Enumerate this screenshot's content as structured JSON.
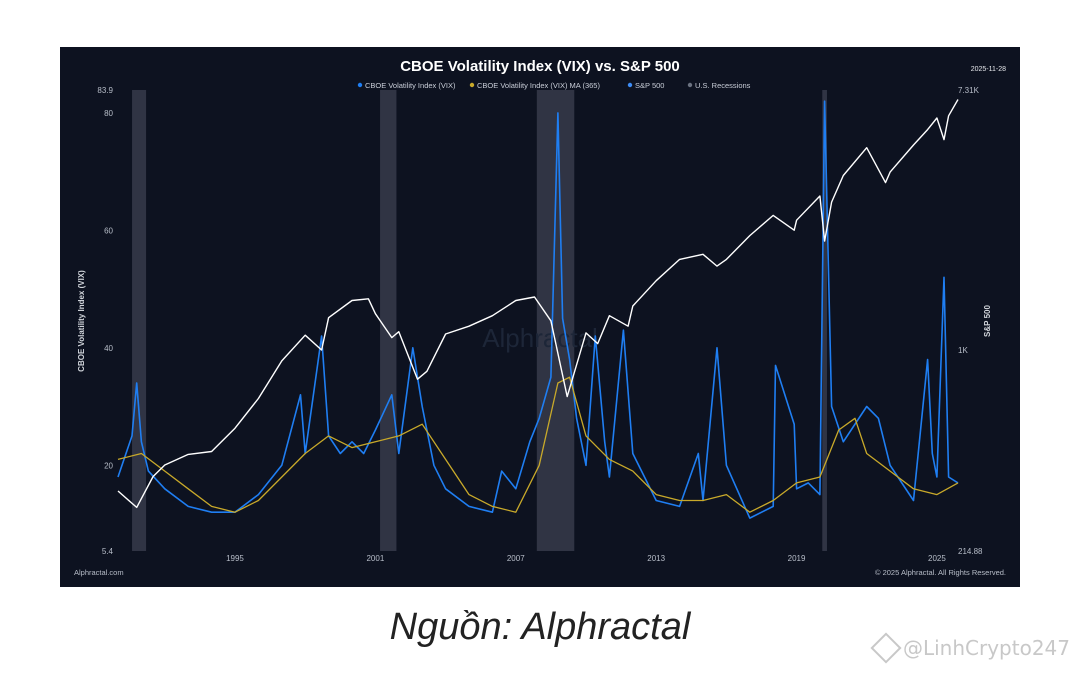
{
  "chart_data": {
    "type": "line",
    "title": "CBOE Volatility Index (VIX) vs. S&P 500",
    "date": "2025-11-28",
    "legend": [
      {
        "label": "CBOE Volatility Index (VIX)",
        "color": "#1f7ef2"
      },
      {
        "label": "CBOE Volatility Index (VIX) MA (365)",
        "color": "#c8a92a"
      },
      {
        "label": "S&P 500",
        "color": "#3d8cf5"
      },
      {
        "label": "U.S. Recessions",
        "color": "#6b7280"
      }
    ],
    "ylabel_left": "CBOE Volatility Index (VIX)",
    "ylabel_right": "S&P 500",
    "y_left_ticks": [
      "83.9",
      "80",
      "60",
      "40",
      "20",
      "5.4"
    ],
    "y_left_range": [
      5.4,
      83.9
    ],
    "y_right_ticks": [
      "7.31K",
      "1K",
      "214.88"
    ],
    "y_right_range": [
      214.88,
      7310
    ],
    "y_right_scale": "log",
    "x_ticks": [
      "1995",
      "2001",
      "2007",
      "2013",
      "2019",
      "2025"
    ],
    "x_range": [
      1990,
      2025.9
    ],
    "recessions": [
      [
        1990.6,
        1991.2
      ],
      [
        2001.2,
        2001.9
      ],
      [
        2007.9,
        2009.5
      ],
      [
        2020.1,
        2020.3
      ]
    ],
    "series": [
      {
        "name": "CBOE Volatility Index (VIX)",
        "x": [
          1990.0,
          1990.6,
          1990.8,
          1991.0,
          1991.3,
          1992.0,
          1993.0,
          1994.0,
          1995.0,
          1996.0,
          1997.0,
          1997.8,
          1998.0,
          1998.7,
          1999.0,
          1999.5,
          2000.0,
          2000.5,
          2001.0,
          2001.7,
          2002.0,
          2002.6,
          2003.0,
          2003.5,
          2004.0,
          2005.0,
          2006.0,
          2006.4,
          2007.0,
          2007.6,
          2008.0,
          2008.5,
          2008.8,
          2009.0,
          2009.3,
          2009.6,
          2010.0,
          2010.4,
          2010.8,
          2011.0,
          2011.6,
          2012.0,
          2013.0,
          2014.0,
          2014.8,
          2015.0,
          2015.6,
          2016.0,
          2017.0,
          2018.0,
          2018.1,
          2018.9,
          2019.0,
          2019.5,
          2020.0,
          2020.2,
          2020.5,
          2021.0,
          2022.0,
          2022.5,
          2023.0,
          2024.0,
          2024.6,
          2024.8,
          2025.0,
          2025.3,
          2025.5,
          2025.9
        ],
        "values": [
          18,
          25,
          34,
          24,
          19,
          16,
          13,
          12,
          12,
          15,
          20,
          32,
          22,
          42,
          25,
          22,
          24,
          22,
          26,
          32,
          22,
          40,
          30,
          20,
          16,
          13,
          12,
          19,
          16,
          24,
          28,
          35,
          80,
          45,
          38,
          28,
          20,
          42,
          24,
          18,
          43,
          22,
          14,
          13,
          22,
          14,
          40,
          20,
          11,
          13,
          37,
          27,
          16,
          17,
          15,
          82,
          30,
          24,
          30,
          28,
          20,
          14,
          38,
          22,
          18,
          52,
          18,
          17
        ]
      },
      {
        "name": "CBOE Volatility Index (VIX) MA (365)",
        "x": [
          1990.0,
          1991.0,
          1992.0,
          1993.0,
          1994.0,
          1995.0,
          1996.0,
          1997.0,
          1998.0,
          1999.0,
          2000.0,
          2001.0,
          2002.0,
          2003.0,
          2004.0,
          2005.0,
          2006.0,
          2007.0,
          2008.0,
          2008.8,
          2009.3,
          2010.0,
          2011.0,
          2012.0,
          2013.0,
          2014.0,
          2015.0,
          2016.0,
          2017.0,
          2018.0,
          2019.0,
          2020.0,
          2020.8,
          2021.5,
          2022.0,
          2023.0,
          2024.0,
          2025.0,
          2025.9
        ],
        "values": [
          21,
          22,
          19,
          16,
          13,
          12,
          14,
          18,
          22,
          25,
          23,
          24,
          25,
          27,
          21,
          15,
          13,
          12,
          20,
          34,
          35,
          25,
          21,
          19,
          15,
          14,
          14,
          15,
          12,
          14,
          17,
          18,
          26,
          28,
          22,
          19,
          16,
          15,
          17
        ]
      },
      {
        "name": "S&P 500",
        "x": [
          1990.0,
          1990.8,
          1991.5,
          1992.0,
          1993.0,
          1994.0,
          1995.0,
          1996.0,
          1997.0,
          1998.0,
          1998.7,
          1999.0,
          2000.0,
          2000.7,
          2001.0,
          2001.7,
          2002.0,
          2002.8,
          2003.2,
          2004.0,
          2005.0,
          2006.0,
          2007.0,
          2007.8,
          2008.5,
          2009.2,
          2010.0,
          2010.5,
          2011.0,
          2011.8,
          2012.0,
          2013.0,
          2014.0,
          2015.0,
          2015.6,
          2016.0,
          2017.0,
          2018.0,
          2018.9,
          2019.0,
          2020.0,
          2020.2,
          2020.5,
          2021.0,
          2022.0,
          2022.8,
          2023.0,
          2024.0,
          2024.6,
          2025.0,
          2025.3,
          2025.5,
          2025.9
        ],
        "values": [
          340,
          300,
          380,
          415,
          450,
          460,
          550,
          690,
          920,
          1120,
          1000,
          1280,
          1460,
          1480,
          1320,
          1100,
          1150,
          800,
          850,
          1130,
          1200,
          1300,
          1460,
          1500,
          1250,
          700,
          1140,
          1050,
          1300,
          1200,
          1400,
          1700,
          2000,
          2080,
          1900,
          2000,
          2400,
          2800,
          2500,
          2700,
          3250,
          2300,
          3100,
          3800,
          4700,
          3600,
          3900,
          4800,
          5400,
          5900,
          5000,
          6000,
          6800
        ]
      }
    ]
  },
  "footer": {
    "brand": "Alphractal.com",
    "copyright": "© 2025 Alphractal. All Rights Reserved.",
    "watermark_logo": "Alphractal"
  },
  "caption": "Nguồn: Alphractal",
  "author_watermark": "@LinhCrypto247"
}
